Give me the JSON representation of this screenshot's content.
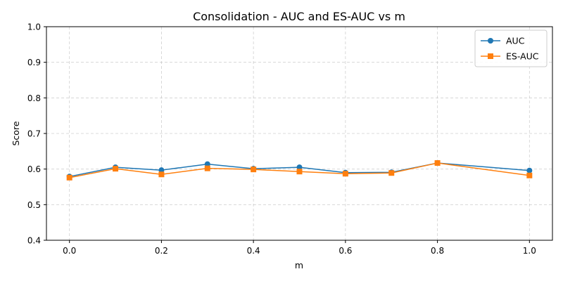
{
  "chart_data": {
    "type": "line",
    "title": "Consolidation - AUC and ES-AUC vs m",
    "xlabel": "m",
    "ylabel": "Score",
    "x": [
      0.0,
      0.1,
      0.2,
      0.3,
      0.4,
      0.5,
      0.6,
      0.7,
      0.8,
      1.0
    ],
    "xlim": [
      -0.05,
      1.05
    ],
    "ylim": [
      0.4,
      1.0
    ],
    "xticks": [
      0.0,
      0.2,
      0.4,
      0.6,
      0.8,
      1.0
    ],
    "xtick_labels": [
      "0.0",
      "0.2",
      "0.4",
      "0.6",
      "0.8",
      "1.0"
    ],
    "yticks": [
      0.4,
      0.5,
      0.6,
      0.7,
      0.8,
      0.9,
      1.0
    ],
    "ytick_labels": [
      "0.4",
      "0.5",
      "0.6",
      "0.7",
      "0.8",
      "0.9",
      "1.0"
    ],
    "grid": true,
    "legend_position": "top-right",
    "series": [
      {
        "name": "AUC",
        "color": "#1f77b4",
        "marker": "circle",
        "values": [
          0.579,
          0.605,
          0.597,
          0.614,
          0.601,
          0.605,
          0.59,
          0.591,
          0.617,
          0.596
        ]
      },
      {
        "name": "ES-AUC",
        "color": "#ff7f0e",
        "marker": "square",
        "values": [
          0.576,
          0.601,
          0.585,
          0.602,
          0.599,
          0.593,
          0.587,
          0.589,
          0.617,
          0.582
        ]
      }
    ]
  }
}
